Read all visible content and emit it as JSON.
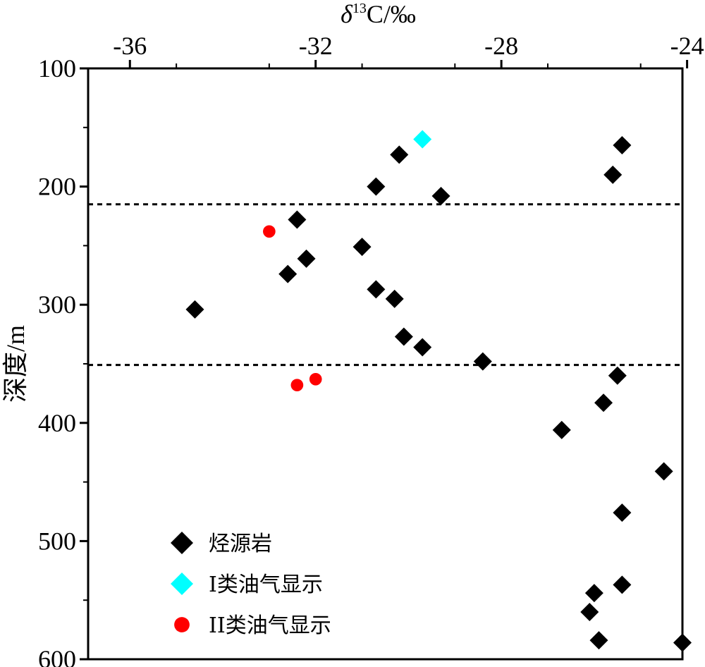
{
  "chart_data": {
    "type": "scatter",
    "xlabel_main": "δ",
    "xlabel_sup": "13",
    "xlabel_rest": "C/‰",
    "ylabel": "深度/m",
    "xlim": [
      -36.9,
      -24.1
    ],
    "ylim": [
      100,
      600
    ],
    "y_inverted": true,
    "x_axis_position": "top",
    "x_ticks": [
      -36,
      -32,
      -28,
      -24
    ],
    "x_tick_labels": [
      "-36",
      "-32",
      "-28",
      "-24"
    ],
    "y_ticks": [
      100,
      200,
      300,
      400,
      500,
      600
    ],
    "y_tick_labels": [
      "100",
      "200",
      "300",
      "400",
      "500",
      "600"
    ],
    "reference_lines_y": [
      215,
      351
    ],
    "legend_position": "bottom-left",
    "series": [
      {
        "name": "烃源岩",
        "marker": "diamond",
        "color": "#000000",
        "points": [
          {
            "x": -34.6,
            "y": 304
          },
          {
            "x": -32.6,
            "y": 274
          },
          {
            "x": -32.4,
            "y": 228
          },
          {
            "x": -32.2,
            "y": 261
          },
          {
            "x": -31.0,
            "y": 251
          },
          {
            "x": -30.7,
            "y": 200
          },
          {
            "x": -30.7,
            "y": 287
          },
          {
            "x": -30.3,
            "y": 295
          },
          {
            "x": -30.2,
            "y": 173
          },
          {
            "x": -30.1,
            "y": 327
          },
          {
            "x": -29.7,
            "y": 336
          },
          {
            "x": -29.3,
            "y": 208
          },
          {
            "x": -28.4,
            "y": 348
          },
          {
            "x": -26.7,
            "y": 406
          },
          {
            "x": -26.1,
            "y": 560
          },
          {
            "x": -26.0,
            "y": 544
          },
          {
            "x": -25.9,
            "y": 584
          },
          {
            "x": -25.8,
            "y": 383
          },
          {
            "x": -25.6,
            "y": 190
          },
          {
            "x": -25.5,
            "y": 360
          },
          {
            "x": -25.4,
            "y": 165
          },
          {
            "x": -25.4,
            "y": 476
          },
          {
            "x": -25.4,
            "y": 537
          },
          {
            "x": -24.5,
            "y": 441
          },
          {
            "x": -24.1,
            "y": 586
          }
        ]
      },
      {
        "name": "I类油气显示",
        "marker": "diamond",
        "color": "#00FFFF",
        "points": [
          {
            "x": -29.7,
            "y": 160
          }
        ]
      },
      {
        "name": "II类油气显示",
        "marker": "circle",
        "color": "#FF0000",
        "points": [
          {
            "x": -33.0,
            "y": 238
          },
          {
            "x": -32.4,
            "y": 368
          },
          {
            "x": -32.0,
            "y": 363
          }
        ]
      }
    ]
  }
}
